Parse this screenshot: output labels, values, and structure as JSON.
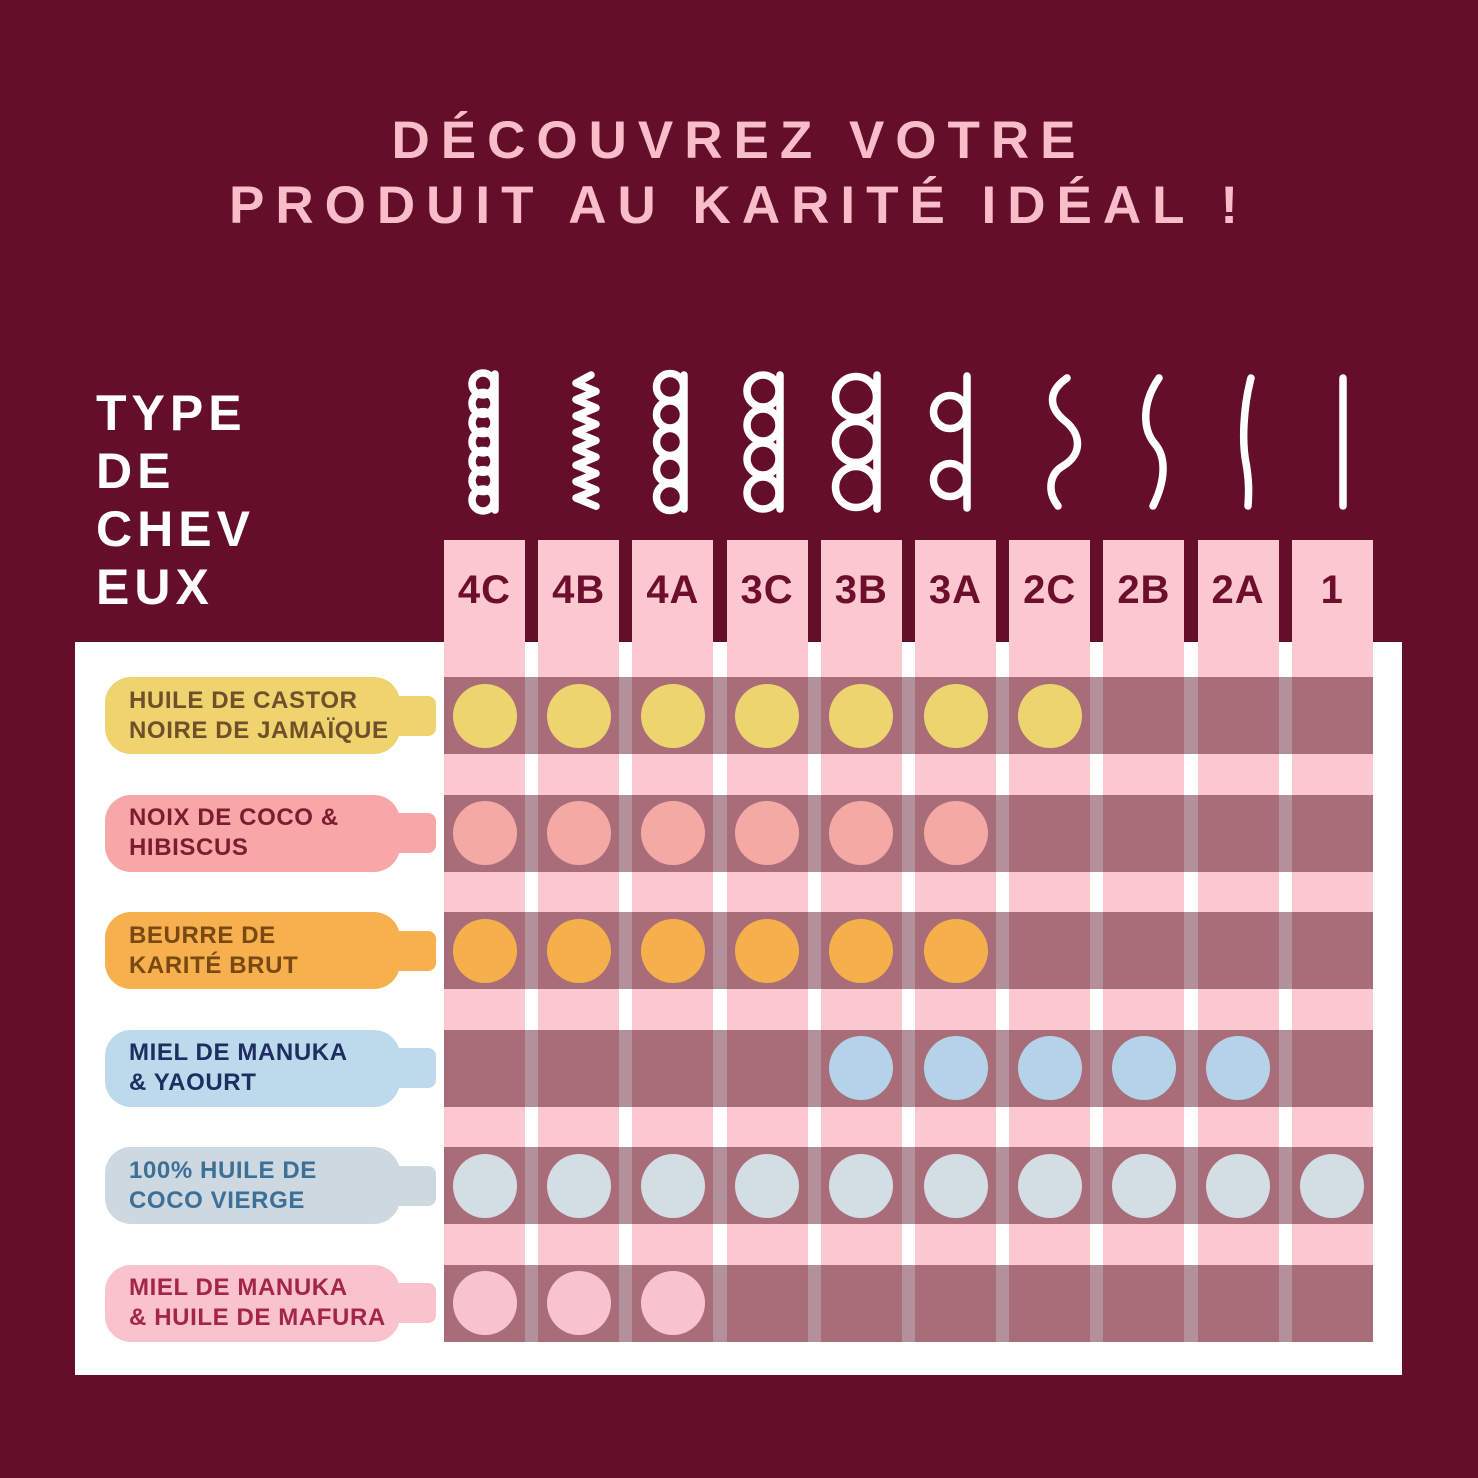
{
  "title": {
    "line1": "DÉCOUVREZ VOTRE",
    "line2": "PRODUIT AU KARITÉ IDÉAL !"
  },
  "hair_type_label": {
    "lines": [
      "TYPE",
      "DE",
      "CHEV",
      "EUX"
    ]
  },
  "grid": {
    "columns": [
      {
        "label": "4C",
        "icon": "coil-tight-icon"
      },
      {
        "label": "4B",
        "icon": "zigzag-icon"
      },
      {
        "label": "4A",
        "icon": "coil-small-icon"
      },
      {
        "label": "3C",
        "icon": "coil-medium-icon"
      },
      {
        "label": "3B",
        "icon": "coil-large-icon"
      },
      {
        "label": "3A",
        "icon": "coil-loose-icon"
      },
      {
        "label": "2C",
        "icon": "wave-strong-icon"
      },
      {
        "label": "2B",
        "icon": "wave-soft-icon"
      },
      {
        "label": "2A",
        "icon": "wave-slight-icon"
      },
      {
        "label": "1",
        "icon": "straight-icon"
      }
    ],
    "rows": [
      {
        "lines": [
          "HUILE DE CASTOR",
          "NOIRE DE JAMAÏQUE"
        ],
        "bottle_color": "#eed36e",
        "text_color": "#70502a",
        "dot_color": "#eed46f",
        "dots": [
          "4C",
          "4B",
          "4A",
          "3C",
          "3B",
          "3A",
          "2C"
        ]
      },
      {
        "lines": [
          "NOIX DE COCO &",
          "HIBISCUS"
        ],
        "bottle_color": "#f7a7a7",
        "text_color": "#7c1c30",
        "dot_color": "#f5a9a4",
        "dots": [
          "4C",
          "4B",
          "4A",
          "3C",
          "3B",
          "3A"
        ]
      },
      {
        "lines": [
          "BEURRE DE",
          "KARITÉ BRUT"
        ],
        "bottle_color": "#f6b04e",
        "text_color": "#7a4812",
        "dot_color": "#f5b04c",
        "dots": [
          "4C",
          "4B",
          "4A",
          "3C",
          "3B",
          "3A"
        ]
      },
      {
        "lines": [
          "MIEL DE MANUKA",
          "& YAOURT"
        ],
        "bottle_color": "#bddaed",
        "text_color": "#1d2e61",
        "dot_color": "#b5d3e8",
        "dots": [
          "3B",
          "3A",
          "2C",
          "2B",
          "2A"
        ]
      },
      {
        "lines": [
          "100% HUILE DE",
          "COCO VIERGE"
        ],
        "bottle_color": "#cdd8e1",
        "text_color": "#3d7096",
        "dot_color": "#d3dde4",
        "dots": [
          "4C",
          "4B",
          "4A",
          "3C",
          "3B",
          "3A",
          "2C",
          "2B",
          "2A",
          "1"
        ]
      },
      {
        "lines": [
          "MIEL DE MANUKA",
          "& HUILE DE MAFURA"
        ],
        "bottle_color": "#f9c2cd",
        "text_color": "#a32646",
        "dot_color": "#f8c2ce",
        "dots": [
          "4C",
          "4B",
          "4A"
        ]
      }
    ]
  },
  "colors": {
    "background": "#650e29",
    "title": "#f8bdc9",
    "panel": "#ffffff",
    "column": "#fcc8d0",
    "band_gap": "#b4909b",
    "band_cell": "#a96d7a",
    "header_text": "#6d0e2c",
    "icon": "#ffffff"
  },
  "chart_data": {
    "type": "table",
    "title": "DÉCOUVREZ VOTRE PRODUIT AU KARITÉ IDÉAL !",
    "x_axis_label": "TYPE DE CHEVEUX",
    "columns": [
      "4C",
      "4B",
      "4A",
      "3C",
      "3B",
      "3A",
      "2C",
      "2B",
      "2A",
      "1"
    ],
    "rows": [
      {
        "product": "HUILE DE CASTOR NOIRE DE JAMAÏQUE",
        "suitable_for": [
          "4C",
          "4B",
          "4A",
          "3C",
          "3B",
          "3A",
          "2C"
        ]
      },
      {
        "product": "NOIX DE COCO & HIBISCUS",
        "suitable_for": [
          "4C",
          "4B",
          "4A",
          "3C",
          "3B",
          "3A"
        ]
      },
      {
        "product": "BEURRE DE KARITÉ BRUT",
        "suitable_for": [
          "4C",
          "4B",
          "4A",
          "3C",
          "3B",
          "3A"
        ]
      },
      {
        "product": "MIEL DE MANUKA & YAOURT",
        "suitable_for": [
          "3B",
          "3A",
          "2C",
          "2B",
          "2A"
        ]
      },
      {
        "product": "100% HUILE DE COCO VIERGE",
        "suitable_for": [
          "4C",
          "4B",
          "4A",
          "3C",
          "3B",
          "3A",
          "2C",
          "2B",
          "2A",
          "1"
        ]
      },
      {
        "product": "MIEL DE MANUKA & HUILE DE MAFURA",
        "suitable_for": [
          "4C",
          "4B",
          "4A"
        ]
      }
    ],
    "legend_position": "none",
    "grid": "matrix of pink columns crossed by translucent maroon product bands; a dot marks suitability"
  }
}
